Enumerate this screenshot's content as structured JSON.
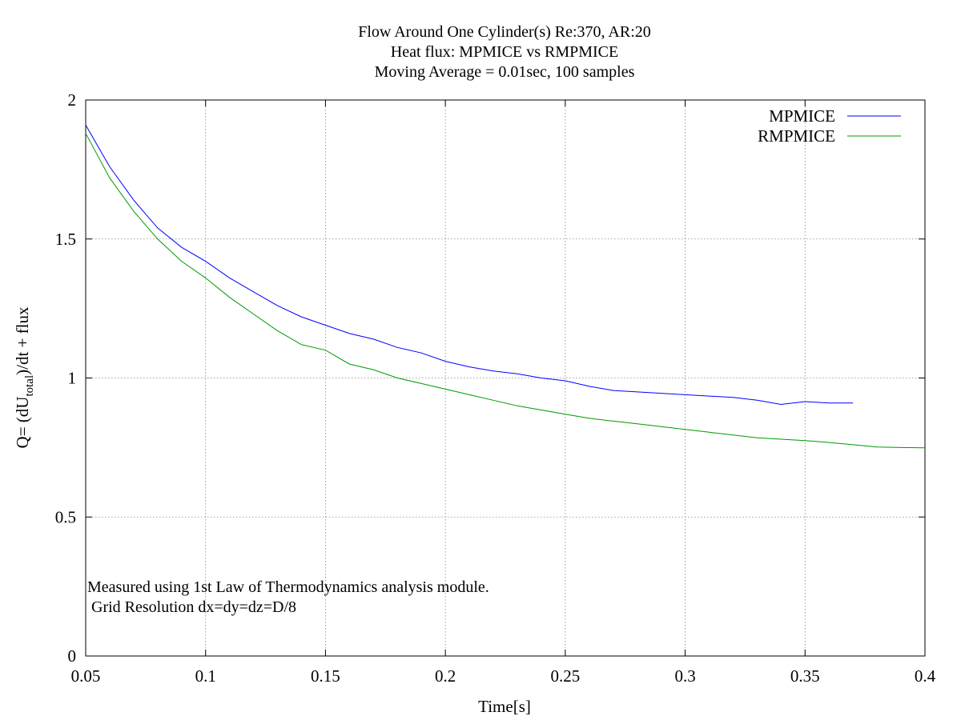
{
  "chart_data": {
    "type": "line",
    "title_lines": [
      "Flow Around One Cylinder(s) Re:370, AR:20",
      "Heat flux: MPMICE vs RMPMICE",
      "Moving Average = 0.01sec, 100 samples"
    ],
    "xlabel": "Time[s]",
    "ylabel": {
      "prefix": "Q= (dU",
      "subscript": "total",
      "suffix": ")/dt + flux"
    },
    "xlim": [
      0.05,
      0.4
    ],
    "ylim": [
      0,
      2
    ],
    "xticks": [
      "0.05",
      "0.1",
      "0.15",
      "0.2",
      "0.25",
      "0.3",
      "0.35",
      "0.4"
    ],
    "yticks": [
      "0",
      "0.5",
      "1",
      "1.5",
      "2"
    ],
    "grid": true,
    "legend_position": "top-right",
    "annotation_lines": [
      "Measured using 1st Law of Thermodynamics analysis module.",
      " Grid Resolution dx=dy=dz=D/8"
    ],
    "series": [
      {
        "name": "MPMICE",
        "color": "#0000ff",
        "x": [
          0.05,
          0.06,
          0.07,
          0.08,
          0.09,
          0.1,
          0.11,
          0.12,
          0.13,
          0.14,
          0.15,
          0.16,
          0.17,
          0.18,
          0.19,
          0.2,
          0.21,
          0.22,
          0.23,
          0.24,
          0.25,
          0.26,
          0.27,
          0.28,
          0.29,
          0.3,
          0.31,
          0.32,
          0.33,
          0.34,
          0.35,
          0.36,
          0.37
        ],
        "y": [
          1.91,
          1.76,
          1.64,
          1.54,
          1.47,
          1.42,
          1.36,
          1.31,
          1.26,
          1.22,
          1.19,
          1.16,
          1.14,
          1.11,
          1.09,
          1.06,
          1.04,
          1.025,
          1.015,
          1.0,
          0.99,
          0.97,
          0.955,
          0.95,
          0.945,
          0.94,
          0.935,
          0.93,
          0.92,
          0.905,
          0.915,
          0.91,
          0.91
        ]
      },
      {
        "name": "RMPMICE",
        "color": "#009900",
        "x": [
          0.05,
          0.06,
          0.07,
          0.08,
          0.09,
          0.1,
          0.11,
          0.12,
          0.13,
          0.14,
          0.15,
          0.16,
          0.17,
          0.18,
          0.19,
          0.2,
          0.21,
          0.22,
          0.23,
          0.24,
          0.25,
          0.26,
          0.27,
          0.28,
          0.29,
          0.3,
          0.31,
          0.32,
          0.33,
          0.34,
          0.35,
          0.36,
          0.37,
          0.38,
          0.39,
          0.4
        ],
        "y": [
          1.88,
          1.72,
          1.6,
          1.5,
          1.42,
          1.36,
          1.29,
          1.23,
          1.17,
          1.12,
          1.1,
          1.05,
          1.03,
          1.0,
          0.98,
          0.96,
          0.94,
          0.92,
          0.9,
          0.885,
          0.87,
          0.855,
          0.845,
          0.835,
          0.825,
          0.815,
          0.805,
          0.795,
          0.785,
          0.78,
          0.775,
          0.768,
          0.76,
          0.752,
          0.75,
          0.749
        ]
      }
    ]
  }
}
